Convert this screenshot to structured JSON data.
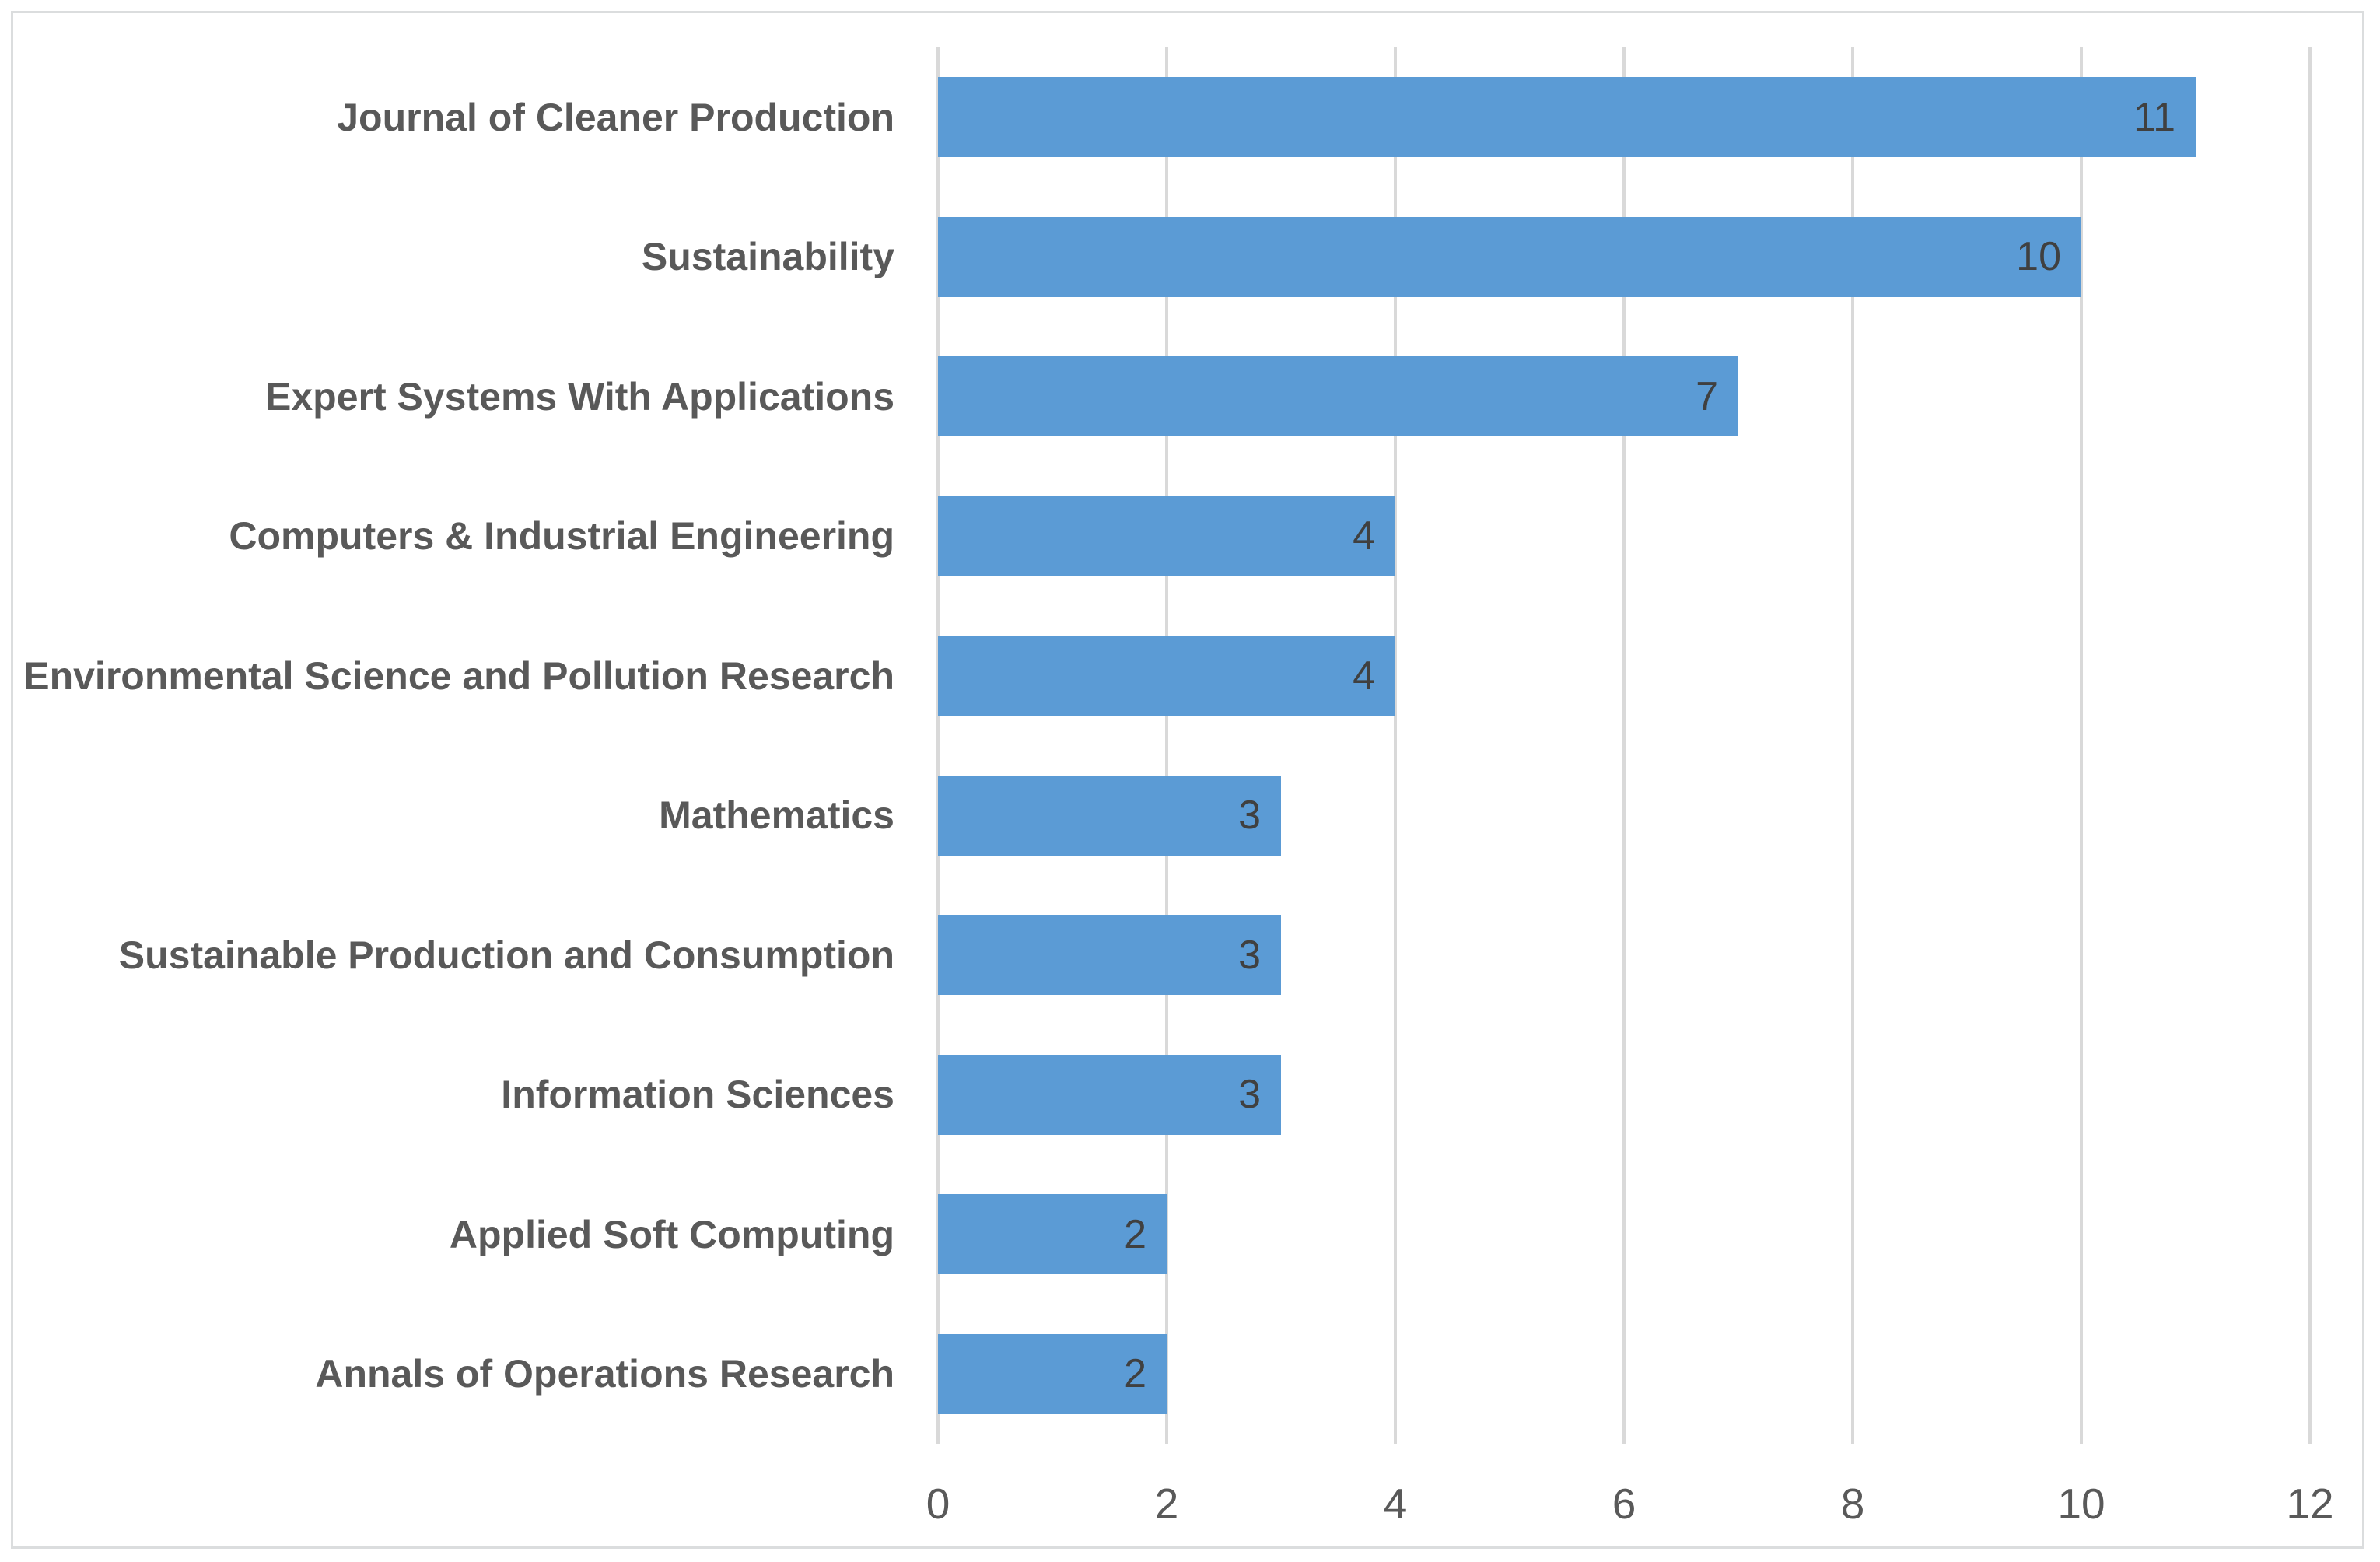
{
  "chart_data": {
    "type": "bar",
    "orientation": "horizontal",
    "categories": [
      "Journal of Cleaner Production",
      "Sustainability",
      "Expert Systems With Applications",
      "Computers & Industrial Engineering",
      "Environmental Science and Pollution Research",
      "Mathematics",
      "Sustainable Production and Consumption",
      "Information Sciences",
      "Applied Soft Computing",
      "Annals of Operations Research"
    ],
    "values": [
      11,
      10,
      7,
      4,
      4,
      3,
      3,
      3,
      2,
      2
    ],
    "x_ticks": [
      0,
      2,
      4,
      6,
      8,
      10,
      12
    ],
    "xlim": [
      0,
      12
    ],
    "grid": true,
    "legend": false,
    "colors": {
      "bar": "#5B9BD5",
      "gridline": "#D9D9D9",
      "category_label": "#595959",
      "tick_label": "#595959",
      "data_label": "#404040",
      "frame_border": "#DBDDDE",
      "background": "#FFFFFF"
    }
  }
}
